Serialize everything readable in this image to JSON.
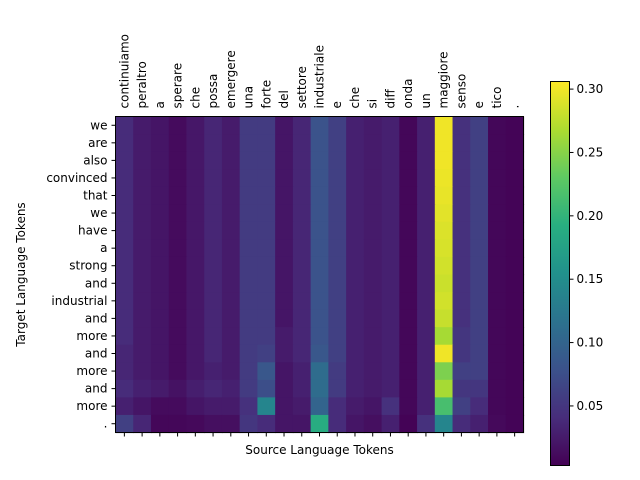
{
  "chart_data": {
    "type": "heatmap",
    "title": "",
    "xlabel": "Source Language Tokens",
    "ylabel": "Target Language Tokens",
    "x_tick_position": "top",
    "grid": false,
    "colormap": "viridis",
    "x_tokens": [
      "continuiamo",
      "peraltro",
      "a",
      "sperare",
      "che",
      "possa",
      "emergere",
      "una",
      "forte",
      "del",
      "settore",
      "industriale",
      "e",
      "che",
      "si",
      "diff",
      "onda",
      "un",
      "maggiore",
      "senso",
      "e",
      "tico",
      "."
    ],
    "y_tokens": [
      "we",
      "are",
      "also",
      "convinced",
      "that",
      "we",
      "have",
      "a",
      "strong",
      "and",
      "industrial",
      "and",
      "more",
      "and",
      "more",
      "and",
      "more",
      "."
    ],
    "colorbar": {
      "vmin": 0.003,
      "vmax": 0.306,
      "ticks": [
        0.05,
        0.1,
        0.15,
        0.2,
        0.25,
        0.3
      ],
      "tick_labels": [
        "0.05",
        "0.10",
        "0.15",
        "0.20",
        "0.25",
        "0.30"
      ]
    },
    "values": [
      [
        0.04,
        0.025,
        0.02,
        0.012,
        0.022,
        0.035,
        0.025,
        0.055,
        0.055,
        0.02,
        0.035,
        0.08,
        0.06,
        0.03,
        0.025,
        0.03,
        0.008,
        0.03,
        0.3,
        0.045,
        0.06,
        0.008,
        0.006
      ],
      [
        0.04,
        0.025,
        0.02,
        0.012,
        0.022,
        0.035,
        0.025,
        0.055,
        0.055,
        0.02,
        0.035,
        0.08,
        0.06,
        0.03,
        0.025,
        0.03,
        0.008,
        0.03,
        0.3,
        0.045,
        0.06,
        0.008,
        0.006
      ],
      [
        0.04,
        0.025,
        0.02,
        0.012,
        0.022,
        0.035,
        0.025,
        0.055,
        0.055,
        0.02,
        0.035,
        0.08,
        0.06,
        0.03,
        0.025,
        0.03,
        0.008,
        0.03,
        0.3,
        0.045,
        0.06,
        0.008,
        0.006
      ],
      [
        0.04,
        0.025,
        0.02,
        0.012,
        0.022,
        0.035,
        0.025,
        0.055,
        0.055,
        0.02,
        0.035,
        0.08,
        0.06,
        0.03,
        0.025,
        0.03,
        0.008,
        0.03,
        0.298,
        0.045,
        0.06,
        0.008,
        0.006
      ],
      [
        0.04,
        0.025,
        0.02,
        0.012,
        0.022,
        0.035,
        0.025,
        0.055,
        0.055,
        0.02,
        0.035,
        0.08,
        0.06,
        0.03,
        0.025,
        0.03,
        0.008,
        0.03,
        0.296,
        0.045,
        0.06,
        0.008,
        0.006
      ],
      [
        0.04,
        0.025,
        0.02,
        0.012,
        0.022,
        0.035,
        0.025,
        0.055,
        0.055,
        0.02,
        0.035,
        0.08,
        0.06,
        0.03,
        0.025,
        0.03,
        0.008,
        0.03,
        0.293,
        0.045,
        0.06,
        0.008,
        0.006
      ],
      [
        0.04,
        0.025,
        0.02,
        0.012,
        0.022,
        0.035,
        0.025,
        0.055,
        0.055,
        0.02,
        0.035,
        0.08,
        0.06,
        0.03,
        0.025,
        0.03,
        0.008,
        0.03,
        0.29,
        0.045,
        0.06,
        0.008,
        0.006
      ],
      [
        0.04,
        0.025,
        0.02,
        0.012,
        0.022,
        0.035,
        0.025,
        0.055,
        0.055,
        0.02,
        0.035,
        0.08,
        0.06,
        0.03,
        0.025,
        0.03,
        0.008,
        0.03,
        0.288,
        0.045,
        0.06,
        0.008,
        0.006
      ],
      [
        0.04,
        0.025,
        0.02,
        0.012,
        0.022,
        0.035,
        0.025,
        0.055,
        0.055,
        0.02,
        0.035,
        0.08,
        0.06,
        0.03,
        0.025,
        0.03,
        0.008,
        0.03,
        0.285,
        0.045,
        0.06,
        0.008,
        0.006
      ],
      [
        0.04,
        0.025,
        0.02,
        0.012,
        0.022,
        0.035,
        0.025,
        0.055,
        0.055,
        0.02,
        0.035,
        0.08,
        0.06,
        0.03,
        0.025,
        0.03,
        0.008,
        0.03,
        0.282,
        0.045,
        0.06,
        0.008,
        0.006
      ],
      [
        0.04,
        0.025,
        0.02,
        0.012,
        0.022,
        0.035,
        0.025,
        0.055,
        0.055,
        0.02,
        0.035,
        0.08,
        0.06,
        0.03,
        0.025,
        0.03,
        0.008,
        0.03,
        0.285,
        0.045,
        0.06,
        0.008,
        0.006
      ],
      [
        0.04,
        0.025,
        0.02,
        0.012,
        0.022,
        0.035,
        0.025,
        0.055,
        0.055,
        0.02,
        0.035,
        0.08,
        0.06,
        0.03,
        0.025,
        0.03,
        0.008,
        0.03,
        0.28,
        0.045,
        0.06,
        0.008,
        0.006
      ],
      [
        0.04,
        0.025,
        0.02,
        0.012,
        0.022,
        0.035,
        0.025,
        0.055,
        0.055,
        0.025,
        0.035,
        0.08,
        0.06,
        0.03,
        0.025,
        0.03,
        0.008,
        0.03,
        0.265,
        0.05,
        0.06,
        0.008,
        0.006
      ],
      [
        0.035,
        0.025,
        0.02,
        0.012,
        0.022,
        0.035,
        0.025,
        0.055,
        0.06,
        0.025,
        0.035,
        0.085,
        0.06,
        0.03,
        0.025,
        0.03,
        0.008,
        0.03,
        0.3,
        0.05,
        0.06,
        0.008,
        0.006
      ],
      [
        0.035,
        0.025,
        0.02,
        0.012,
        0.022,
        0.03,
        0.025,
        0.055,
        0.085,
        0.02,
        0.03,
        0.11,
        0.055,
        0.03,
        0.025,
        0.03,
        0.008,
        0.03,
        0.245,
        0.06,
        0.06,
        0.008,
        0.006
      ],
      [
        0.04,
        0.03,
        0.025,
        0.018,
        0.028,
        0.035,
        0.03,
        0.055,
        0.075,
        0.02,
        0.03,
        0.11,
        0.055,
        0.03,
        0.025,
        0.03,
        0.008,
        0.03,
        0.265,
        0.05,
        0.05,
        0.008,
        0.006
      ],
      [
        0.03,
        0.02,
        0.012,
        0.012,
        0.02,
        0.025,
        0.025,
        0.045,
        0.14,
        0.02,
        0.025,
        0.1,
        0.04,
        0.025,
        0.02,
        0.045,
        0.008,
        0.03,
        0.215,
        0.06,
        0.04,
        0.008,
        0.006
      ],
      [
        0.06,
        0.035,
        0.008,
        0.008,
        0.01,
        0.015,
        0.015,
        0.05,
        0.04,
        0.02,
        0.02,
        0.19,
        0.04,
        0.02,
        0.015,
        0.03,
        0.005,
        0.045,
        0.14,
        0.04,
        0.03,
        0.01,
        0.006
      ]
    ]
  }
}
